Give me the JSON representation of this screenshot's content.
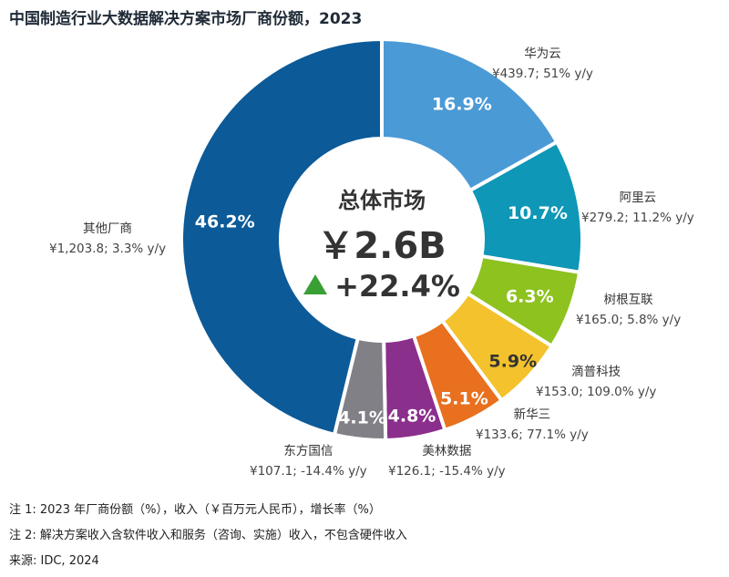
{
  "title": "中国制造行业大数据解决方案市场厂商份额，2023",
  "center": {
    "label": "总体市场",
    "total": "￥2.6B",
    "growth": "+22.4%"
  },
  "chart_data": {
    "type": "pie",
    "title": "中国制造行业大数据解决方案市场厂商份额，2023",
    "slices": [
      {
        "name": "华为云",
        "share": 16.9,
        "pct_label": "16.9%",
        "detail": "¥439.7; 51% y/y",
        "color": "#4a9ad6"
      },
      {
        "name": "阿里云",
        "share": 10.7,
        "pct_label": "10.7%",
        "detail": "¥279.2; 11.2% y/y",
        "color": "#0e97b6"
      },
      {
        "name": "树根互联",
        "share": 6.3,
        "pct_label": "6.3%",
        "detail": "¥165.0; 5.8% y/y",
        "color": "#8dc21f"
      },
      {
        "name": "滴普科技",
        "share": 5.9,
        "pct_label": "5.9%",
        "detail": "¥153.0; 109.0% y/y",
        "color": "#f3c22c"
      },
      {
        "name": "新华三",
        "share": 5.1,
        "pct_label": "5.1%",
        "detail": "¥133.6; 77.1% y/y",
        "color": "#e8701e"
      },
      {
        "name": "美林数据",
        "share": 4.8,
        "pct_label": "4.8%",
        "detail": "¥126.1; -15.4% y/y",
        "color": "#8b2f8d"
      },
      {
        "name": "东方国信",
        "share": 4.1,
        "pct_label": "4.1%",
        "detail": "¥107.1; -14.4% y/y",
        "color": "#808086"
      },
      {
        "name": "其他厂商",
        "share": 46.2,
        "pct_label": "46.2%",
        "detail": "¥1,203.8; 3.3% y/y",
        "color": "#0c5a98"
      }
    ]
  },
  "notes": [
    "注 1:  2023 年厂商份额（%），收入（￥百万元人民币），增长率（%）",
    "注 2:  解决方案收入含软件收入和服务（咨询、实施）收入，不包含硬件收入",
    "来源: IDC, 2024"
  ]
}
